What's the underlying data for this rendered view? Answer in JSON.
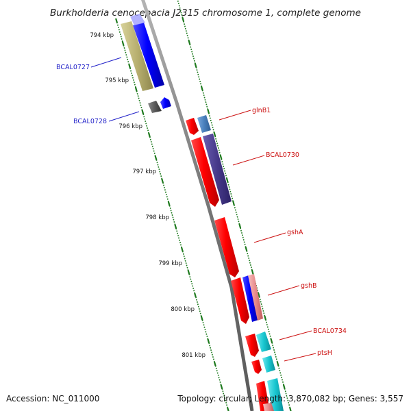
{
  "title": "Burkholderia cenocepacia J2315 chromosome 1, complete genome",
  "accession": "Accession: NC_011000",
  "topology": "Topology: circular; Length: 3,870,082 bp; Genes: 3,557",
  "kbp_labels": [
    "794 kbp",
    "795 kbp",
    "796 kbp",
    "797 kbp",
    "798 kbp",
    "799 kbp",
    "800 kbp",
    "801 kbp"
  ],
  "genes": [
    {
      "name": "BCAL0727",
      "strand": "minus",
      "color": "#2020e0"
    },
    {
      "name": "BCAL0728",
      "strand": "minus",
      "color": "#1f1fc8"
    },
    {
      "name": "glnB1",
      "strand": "plus",
      "color": "#cc1111"
    },
    {
      "name": "BCAL0730",
      "strand": "plus",
      "color": "#cc1111"
    },
    {
      "name": "gshA",
      "strand": "plus",
      "color": "#cc1111"
    },
    {
      "name": "gshB",
      "strand": "plus",
      "color": "#cc1111"
    },
    {
      "name": "BCAL0734",
      "strand": "plus",
      "color": "#cc1111"
    },
    {
      "name": "ptsH",
      "strand": "plus",
      "color": "#cc1111"
    }
  ],
  "colors": {
    "backbone": "#8a8a8a",
    "gene_red": "#ee1111",
    "gene_blue": "#1010ee",
    "gene_olive": "#b8b070",
    "gene_navy": "#4a3f8a",
    "gene_steel": "#4f84bd",
    "gene_cyan": "#19c8d2",
    "gene_gray": "#5a5a5a",
    "gene_pink": "#e88a8a",
    "tick_green": "#1e7a1e"
  }
}
